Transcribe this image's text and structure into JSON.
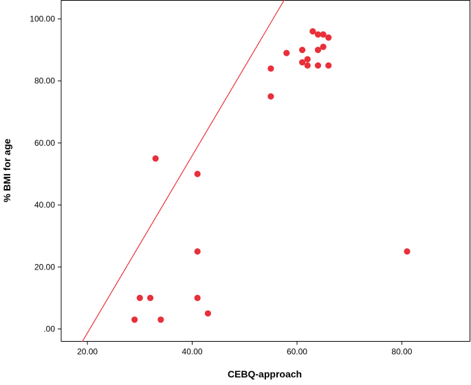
{
  "chart_data": {
    "type": "scatter",
    "title": "",
    "xlabel": "CEBQ-approach",
    "ylabel": "% BMI for age",
    "xlim": [
      15,
      93
    ],
    "ylim": [
      -4,
      106
    ],
    "x_ticks": [
      {
        "value": 20,
        "label": "20.00"
      },
      {
        "value": 40,
        "label": "40.00"
      },
      {
        "value": 60,
        "label": "60.00"
      },
      {
        "value": 80,
        "label": "80.00"
      }
    ],
    "y_ticks": [
      {
        "value": 0,
        "label": ".00"
      },
      {
        "value": 20,
        "label": "20.00"
      },
      {
        "value": 40,
        "label": "40.00"
      },
      {
        "value": 60,
        "label": "60.00"
      },
      {
        "value": 80,
        "label": "80.00"
      },
      {
        "value": 100,
        "label": "100.00"
      }
    ],
    "grid": false,
    "legend": "none",
    "point_color": "#e8303a",
    "line_color": "#e8303a",
    "axis_color": "#000000",
    "points": [
      {
        "x": 63,
        "y": 96
      },
      {
        "x": 64,
        "y": 95
      },
      {
        "x": 65,
        "y": 95
      },
      {
        "x": 66,
        "y": 94
      },
      {
        "x": 65,
        "y": 91
      },
      {
        "x": 61,
        "y": 90
      },
      {
        "x": 64,
        "y": 90
      },
      {
        "x": 58,
        "y": 89
      },
      {
        "x": 62,
        "y": 87
      },
      {
        "x": 61,
        "y": 86
      },
      {
        "x": 62,
        "y": 85
      },
      {
        "x": 64,
        "y": 85
      },
      {
        "x": 66,
        "y": 85
      },
      {
        "x": 55,
        "y": 84
      },
      {
        "x": 55,
        "y": 75
      },
      {
        "x": 33,
        "y": 55
      },
      {
        "x": 41,
        "y": 50
      },
      {
        "x": 41,
        "y": 25
      },
      {
        "x": 81,
        "y": 25
      },
      {
        "x": 30,
        "y": 10
      },
      {
        "x": 32,
        "y": 10
      },
      {
        "x": 41,
        "y": 10
      },
      {
        "x": 43,
        "y": 5
      },
      {
        "x": 29,
        "y": 3
      },
      {
        "x": 34,
        "y": 3
      }
    ],
    "fit_line": {
      "slope": 2.86,
      "intercept": -58.5
    }
  }
}
